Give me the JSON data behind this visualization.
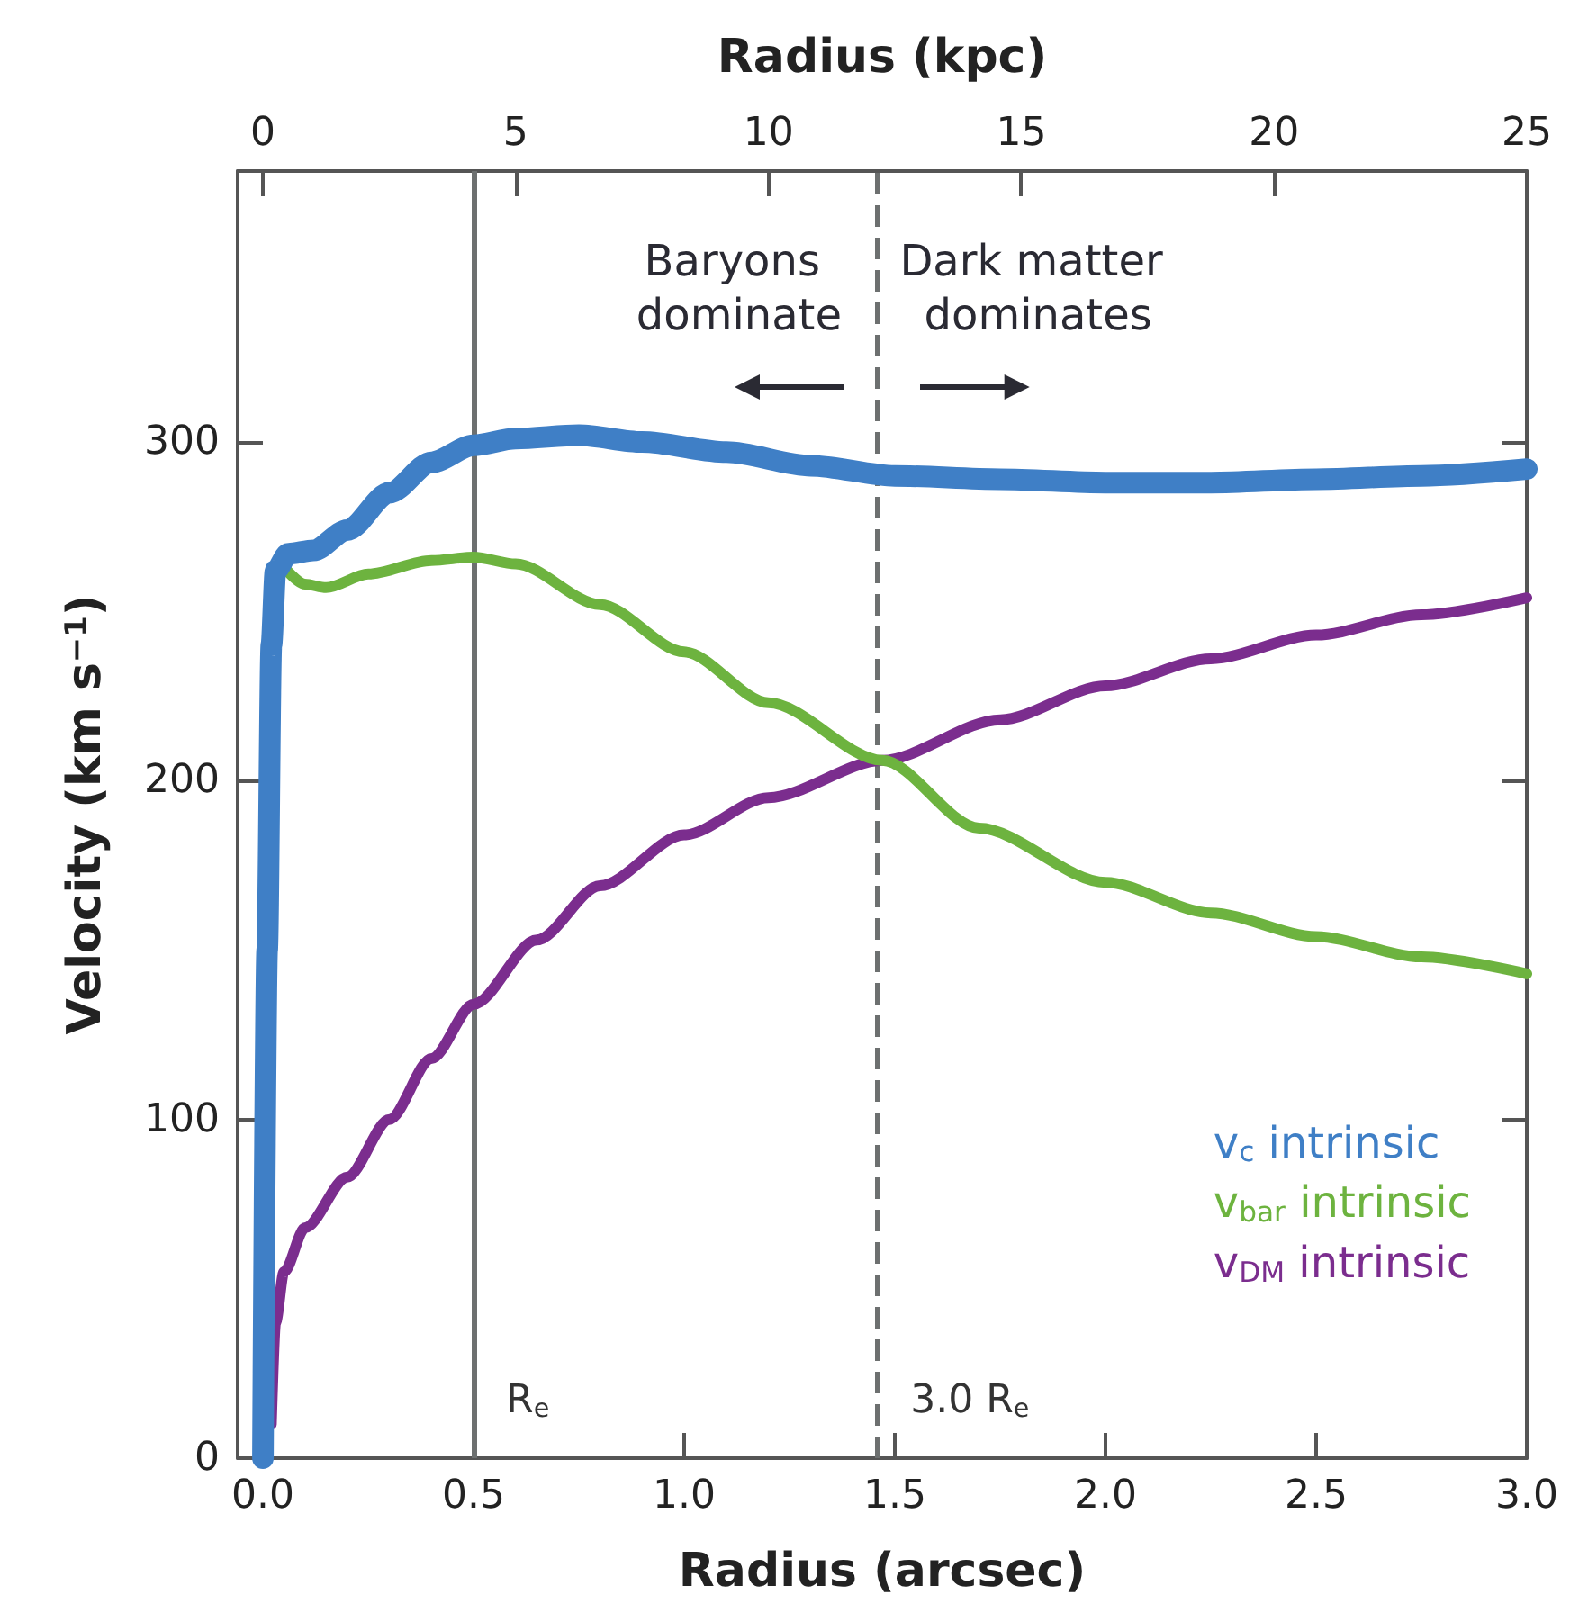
{
  "chart_data": {
    "type": "line",
    "xlabel": "Radius (arcsec)",
    "x2label": "Radius (kpc)",
    "ylabel": "Velocity (km s$^{−1}$)",
    "xlim": [
      -0.06,
      3.0
    ],
    "xticks": [
      {
        "value": 0,
        "label": "0.0"
      },
      0.5,
      {
        "value": 1,
        "label": "1.0"
      },
      1.5,
      {
        "value": 2,
        "label": "2.0"
      },
      2.5,
      {
        "value": 3,
        "label": "3.0"
      }
    ],
    "x2lim": [
      -0.5,
      25
    ],
    "x2ticks": [
      0,
      5,
      10,
      15,
      20,
      25
    ],
    "ylim": [
      0,
      380
    ],
    "yticks": [
      0,
      100,
      200,
      300
    ],
    "legend": "bottom right",
    "series": [
      {
        "name": "v$_{c}$ intrinsic",
        "color": "#3f7fc6",
        "x": [
          0,
          0.01,
          0.02,
          0.03,
          0.06,
          0.12,
          0.2,
          0.3,
          0.4,
          0.5,
          0.6,
          0.75,
          0.9,
          1.1,
          1.3,
          1.5,
          1.75,
          2.0,
          2.25,
          2.5,
          2.75,
          3.0
        ],
        "values": [
          0,
          150,
          240,
          262,
          267,
          268,
          274,
          285,
          294,
          299,
          301,
          302,
          300,
          297,
          293,
          290,
          289,
          288,
          288,
          289,
          290,
          292
        ]
      },
      {
        "name": "v$_{bar}$ intrinsic",
        "color": "#6db33f",
        "x": [
          0.05,
          0.1,
          0.15,
          0.25,
          0.4,
          0.5,
          0.6,
          0.8,
          1.0,
          1.2,
          1.47,
          1.7,
          2.0,
          2.25,
          2.5,
          2.75,
          3.0
        ],
        "values": [
          263,
          258,
          257,
          261,
          265,
          266,
          264,
          252,
          238,
          223,
          206,
          186,
          170,
          161,
          154,
          148,
          143
        ]
      },
      {
        "name": "v$_{DM}$ intrinsic",
        "color": "#7b2d8e",
        "x": [
          0.02,
          0.03,
          0.05,
          0.1,
          0.2,
          0.3,
          0.4,
          0.5,
          0.65,
          0.8,
          1.0,
          1.2,
          1.47,
          1.75,
          2.0,
          2.25,
          2.5,
          2.75,
          3.0
        ],
        "values": [
          10,
          40,
          55,
          68,
          83,
          100,
          118,
          134,
          153,
          169,
          184,
          195,
          206,
          218,
          228,
          236,
          243,
          249,
          254
        ]
      }
    ],
    "ref_lines": [
      {
        "axis": "x",
        "value": 0.5,
        "label": "R$_{e}$",
        "color": "#6d7070",
        "line_style": "solid"
      },
      {
        "axis": "x",
        "value": 1.46,
        "label": "3.0 R$_{e}$",
        "color": "#6d7070",
        "line_style": "dashed"
      }
    ],
    "annotations": [
      "Baryons dominate",
      "Dark matter dominates"
    ]
  }
}
